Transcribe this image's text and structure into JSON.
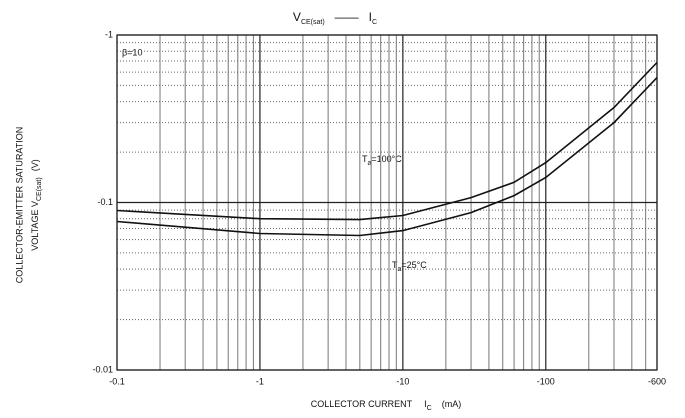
{
  "chart_data": {
    "type": "line",
    "title": {
      "v": "V",
      "vsub": "CE(sat)",
      "dash": "——",
      "i": "I",
      "isub": "C"
    },
    "y_label": [
      "COLLECTOR-EMITTER SATURATION",
      "VOLTAGE  V",
      "CE(sat)",
      "(V)"
    ],
    "x_label": [
      "COLLECTOR CURRENT",
      "I",
      "C",
      "(mA)"
    ],
    "annotations": [
      "β=10",
      "T",
      "a",
      "=100°C",
      "T",
      "a",
      "=25°C"
    ],
    "x": [
      -0.1,
      -1,
      -5,
      -10,
      -30,
      -60,
      -100,
      -300,
      -600
    ],
    "series": [
      {
        "name": "Ta=100°C",
        "color": "#111111",
        "values": [
          -0.0896,
          -0.08,
          -0.079,
          -0.0836,
          -0.107,
          -0.132,
          -0.173,
          -0.369,
          -0.685
        ]
      },
      {
        "name": "Ta=25°C",
        "color": "#111111",
        "values": [
          -0.077,
          -0.0653,
          -0.0635,
          -0.068,
          -0.087,
          -0.11,
          -0.141,
          -0.3,
          -0.557
        ]
      }
    ],
    "xlim": [
      -0.1,
      -600
    ],
    "ylim": [
      -0.01,
      -1
    ],
    "xticks": [
      -0.1,
      -1,
      -10,
      -100,
      -600
    ],
    "yticks": [
      -0.01,
      -0.1,
      -1
    ],
    "xminor": [
      -0.2,
      -0.3,
      -0.4,
      -0.5,
      -0.6,
      -0.7,
      -0.8,
      -0.9,
      -2,
      -3,
      -4,
      -5,
      -6,
      -7,
      -8,
      -9,
      -20,
      -30,
      -40,
      -50,
      -60,
      -70,
      -80,
      -90,
      -200,
      -300,
      -400,
      -500
    ],
    "yminor": [
      -0.02,
      -0.03,
      -0.04,
      -0.05,
      -0.06,
      -0.07,
      -0.08,
      -0.09,
      -0.2,
      -0.3,
      -0.4,
      -0.5,
      -0.6,
      -0.7,
      -0.8,
      -0.9
    ],
    "xscale": "log",
    "yscale": "log",
    "grid": true
  }
}
